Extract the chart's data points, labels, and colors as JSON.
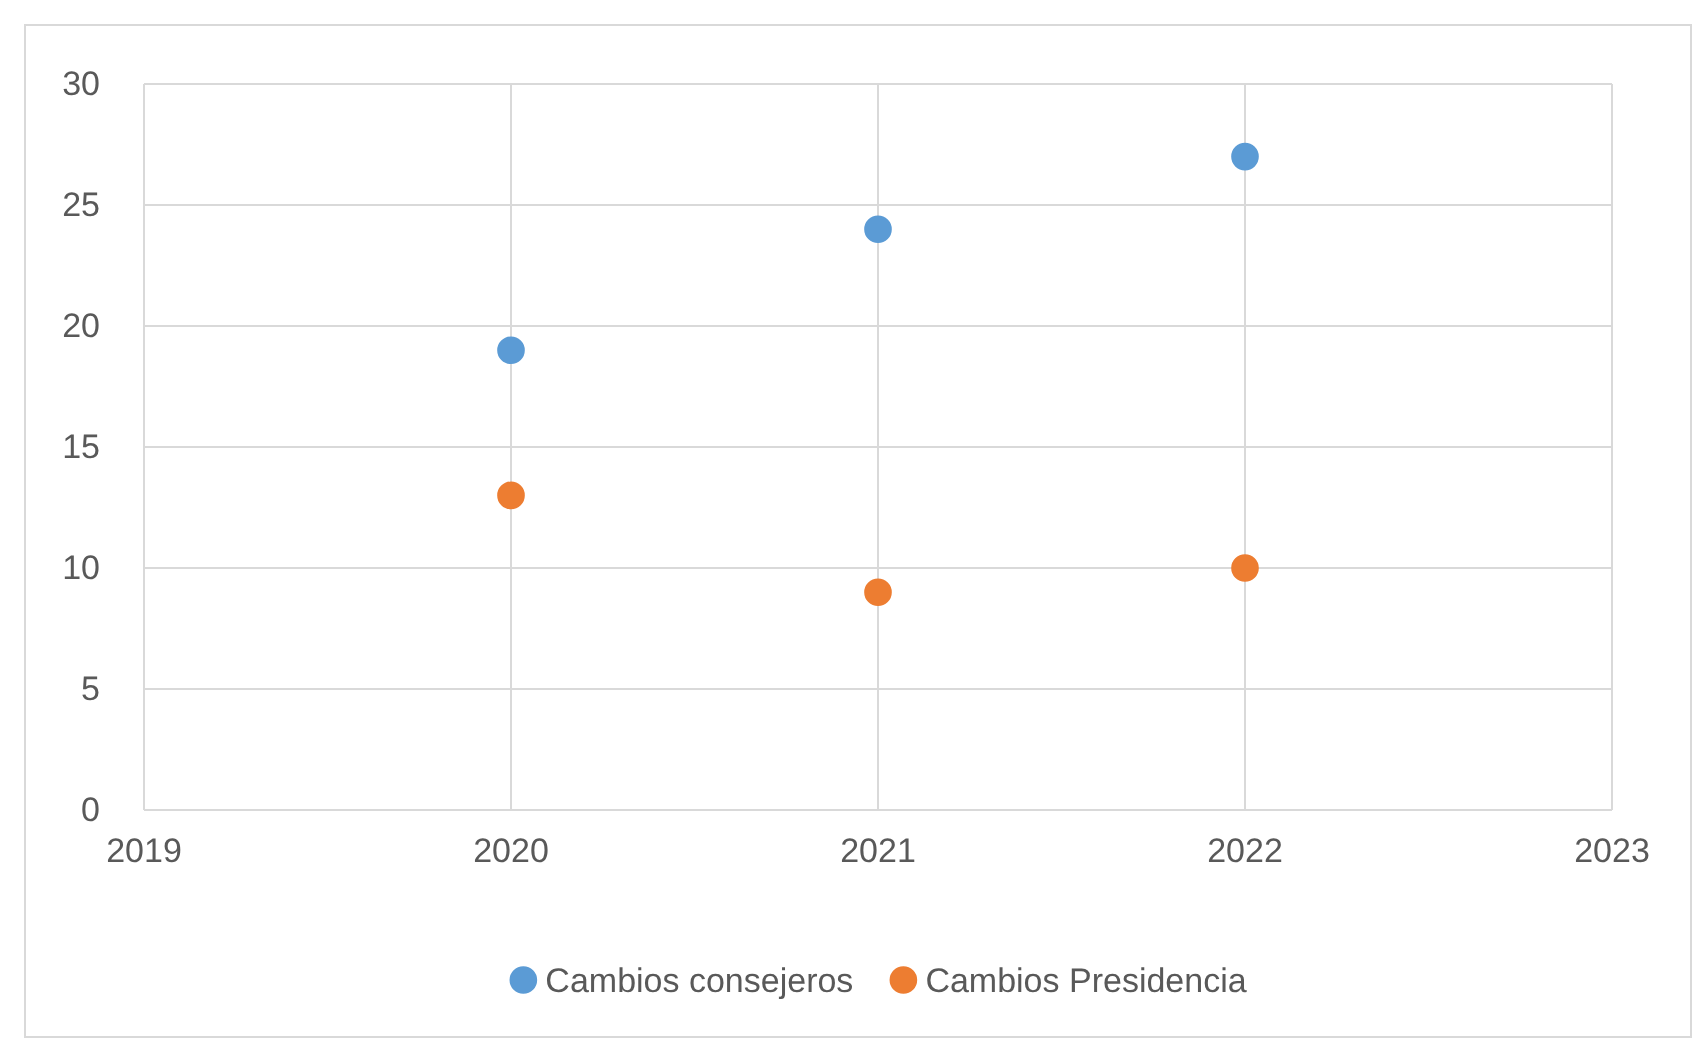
{
  "chart_data": {
    "type": "scatter",
    "x": [
      2020,
      2021,
      2022
    ],
    "series": [
      {
        "name": "Cambios consejeros",
        "color": "#5b9bd5",
        "values": [
          19,
          24,
          27
        ]
      },
      {
        "name": "Cambios Presidencia",
        "color": "#ed7d31",
        "values": [
          13,
          9,
          10
        ]
      }
    ],
    "xlim": [
      2019,
      2023
    ],
    "xticks": [
      2019,
      2020,
      2021,
      2022,
      2023
    ],
    "ylim": [
      0,
      30
    ],
    "yticks": [
      0,
      5,
      10,
      15,
      20,
      25,
      30
    ],
    "grid": true,
    "legend": "bottom",
    "marker": "circle"
  }
}
